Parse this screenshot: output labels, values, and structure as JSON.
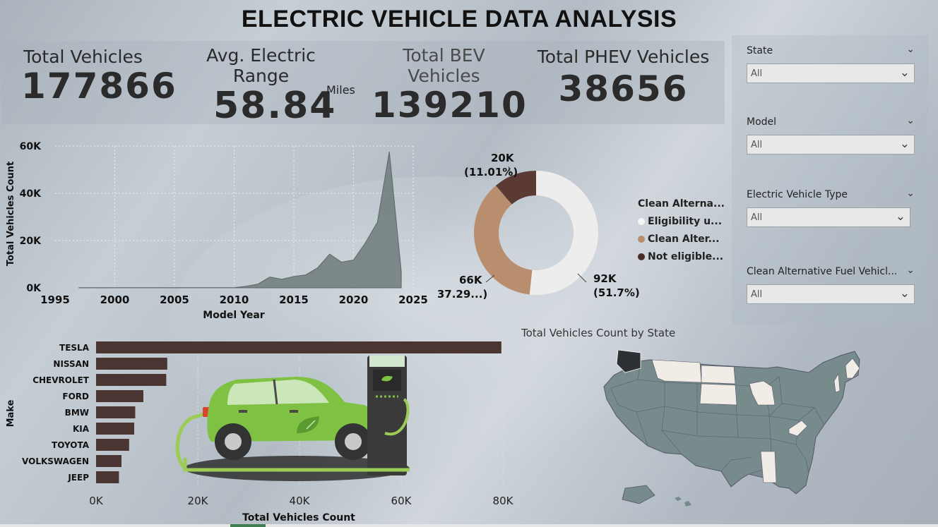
{
  "title": "ELECTRIC VEHICLE DATA ANALYSIS",
  "kpis": {
    "total_vehicles": {
      "label": "Total Vehicles",
      "value": "177866"
    },
    "avg_range": {
      "label": "Avg. Electric Range",
      "value": "58.84",
      "unit": "Miles"
    },
    "total_bev": {
      "label": "Total BEV Vehicles",
      "value": "139210"
    },
    "total_phev": {
      "label": "Total PHEV Vehicles",
      "value": "38656"
    }
  },
  "slicers": [
    {
      "label": "State",
      "value": "All"
    },
    {
      "label": "Model",
      "value": "All"
    },
    {
      "label": "Electric Vehicle Type",
      "value": "All"
    },
    {
      "label": "Clean Alternative Fuel Vehicl...",
      "value": "All"
    }
  ],
  "icons": {
    "slicer_chevron": "chevron-down-icon",
    "legend_marker": "circle-icon"
  },
  "colors": {
    "area_fill": "#6e7b7a",
    "bar_fill": "#4a3532",
    "donut_white": "#ededed",
    "donut_tan": "#b98e6e",
    "donut_brown": "#5a3a33",
    "map_base": "#778b8d",
    "map_highlight": "#f1ede6"
  },
  "chart_data": [
    {
      "type": "area",
      "xlabel": "Model Year",
      "ylabel": "Total Vehicles Count",
      "x_ticks": [
        "1995",
        "2000",
        "2005",
        "2010",
        "2015",
        "2020",
        "2025"
      ],
      "y_ticks": [
        "0K",
        "20K",
        "40K",
        "60K"
      ],
      "xlim": [
        1995,
        2025
      ],
      "ylim": [
        0,
        60000
      ],
      "x": [
        1997,
        1998,
        1999,
        2000,
        2001,
        2002,
        2003,
        2004,
        2005,
        2006,
        2007,
        2008,
        2009,
        2010,
        2011,
        2012,
        2013,
        2014,
        2015,
        2016,
        2017,
        2018,
        2019,
        2020,
        2021,
        2022,
        2023,
        2024
      ],
      "values": [
        100,
        50,
        50,
        50,
        50,
        50,
        50,
        50,
        50,
        50,
        50,
        50,
        50,
        50,
        700,
        1600,
        4600,
        3600,
        4800,
        5500,
        8500,
        14300,
        10900,
        11800,
        19100,
        27800,
        57600,
        7000
      ],
      "grid": true
    },
    {
      "type": "pie",
      "legend_title": "Clean Alterna...",
      "legend_position": "right",
      "slices": [
        {
          "name": "Eligibility u...",
          "value": 92000,
          "label": "92K",
          "pct_label": "(51.7%)"
        },
        {
          "name": "Clean Alter...",
          "value": 66000,
          "label": "66K",
          "pct_label": "(37.29...)"
        },
        {
          "name": "Not eligible...",
          "value": 20000,
          "label": "20K",
          "pct_label": "(11.01%)"
        }
      ]
    },
    {
      "type": "bar",
      "orientation": "horizontal",
      "xlabel": "Total Vehicles Count",
      "ylabel": "Make",
      "categories": [
        "TESLA",
        "NISSAN",
        "CHEVROLET",
        "FORD",
        "BMW",
        "KIA",
        "TOYOTA",
        "VOLKSWAGEN",
        "JEEP"
      ],
      "values": [
        79700,
        14000,
        13800,
        9300,
        7700,
        7500,
        6500,
        5000,
        4500
      ],
      "x_ticks": [
        "0K",
        "20K",
        "40K",
        "60K",
        "80K"
      ],
      "xlim": [
        0,
        80000
      ]
    },
    {
      "type": "map",
      "title": "Total Vehicles Count by State"
    }
  ]
}
